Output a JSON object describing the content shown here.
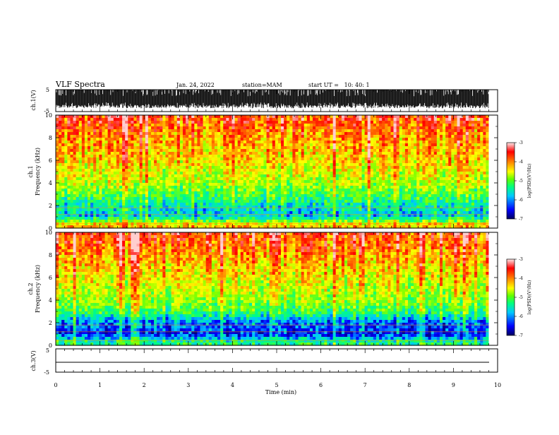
{
  "header": {
    "title": "VLF Spectra",
    "date": "Jan. 24, 2022",
    "station": "station=MAM",
    "start": "start UT =   10: 40: 1"
  },
  "chart_data": [
    {
      "type": "line",
      "panel": "ch1-waveform",
      "ylabel": "ch.1(V)",
      "ylim": [
        -5,
        5
      ],
      "yticks": [
        "5",
        "-5"
      ],
      "xlim": [
        0,
        10
      ],
      "signal": "dense burst waveform spanning about -3 to 5 V"
    },
    {
      "type": "heatmap",
      "panel": "ch1-spectrogram",
      "ylabel_top": "ch.1",
      "ylabel": "Frequency (kHz)",
      "ylim": [
        0,
        10
      ],
      "yticks": [
        "0",
        "2",
        "4",
        "6",
        "8",
        "10"
      ],
      "xlim": [
        0,
        9.8
      ],
      "colorbar": {
        "label": "log(PSD)(V²/Hz)",
        "range": [
          -7,
          -3
        ],
        "ticks": [
          "-3",
          "-4",
          "-5",
          "-6",
          "-7"
        ]
      },
      "profile": [
        {
          "f": 0.3,
          "v": -4.3
        },
        {
          "f": 1.0,
          "v": -5.9
        },
        {
          "f": 2.0,
          "v": -5.7
        },
        {
          "f": 3.0,
          "v": -5.2
        },
        {
          "f": 4.0,
          "v": -4.8
        },
        {
          "f": 6.0,
          "v": -4.4
        },
        {
          "f": 8.0,
          "v": -4.1
        },
        {
          "f": 10.0,
          "v": -3.6
        }
      ]
    },
    {
      "type": "heatmap",
      "panel": "ch2-spectrogram",
      "ylabel_top": "ch.2",
      "ylabel": "Frequency (kHz)",
      "ylim": [
        0,
        10
      ],
      "yticks": [
        "0",
        "2",
        "4",
        "6",
        "8",
        "10"
      ],
      "xlim": [
        0,
        9.8
      ],
      "colorbar": {
        "label": "log(PSD)(V²/Hz)",
        "range": [
          -7,
          -3
        ],
        "ticks": [
          "-3",
          "-4",
          "-5",
          "-6",
          "-7"
        ]
      },
      "profile": [
        {
          "f": 0.3,
          "v": -5.5
        },
        {
          "f": 1.0,
          "v": -6.5
        },
        {
          "f": 2.0,
          "v": -6.2
        },
        {
          "f": 3.0,
          "v": -5.3
        },
        {
          "f": 4.0,
          "v": -4.9
        },
        {
          "f": 6.0,
          "v": -4.5
        },
        {
          "f": 8.0,
          "v": -4.1
        },
        {
          "f": 10.0,
          "v": -3.6
        }
      ]
    },
    {
      "type": "line",
      "panel": "ch3-waveform",
      "ylabel": "ch.3(V)",
      "ylim": [
        -5,
        5
      ],
      "yticks": [
        "5",
        "-5"
      ],
      "xlim": [
        0,
        9.8
      ],
      "signal": "flat line at about -1 V"
    }
  ],
  "xaxis": {
    "label": "Time (min)",
    "range": [
      0,
      10
    ],
    "ticks": [
      "0",
      "1",
      "2",
      "3",
      "4",
      "5",
      "6",
      "7",
      "8",
      "9",
      "10"
    ]
  },
  "colors": {
    "scale": [
      "#000080",
      "#0000ff",
      "#00c8ff",
      "#00ff80",
      "#80ff00",
      "#ffff00",
      "#ff8000",
      "#ff0000",
      "#ffd0d0"
    ]
  }
}
